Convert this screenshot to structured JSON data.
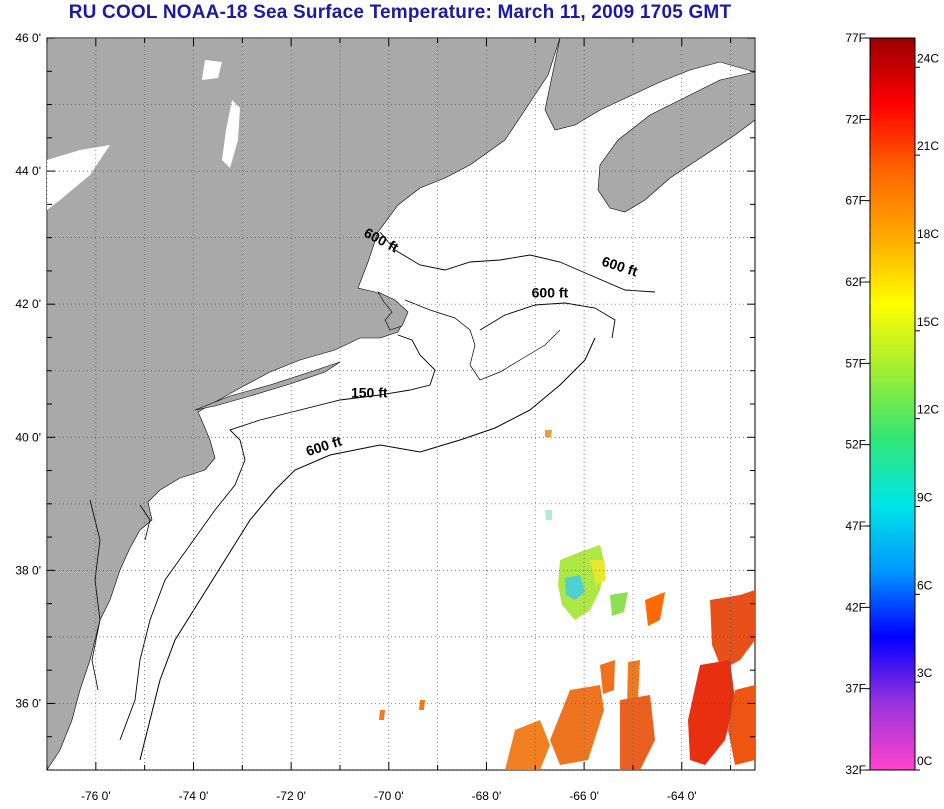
{
  "title": "RU COOL  NOAA-18  Sea Surface Temperature:  March 11, 2009 1705 GMT",
  "map": {
    "lon_range": [
      -77,
      -62.5
    ],
    "lat_range": [
      35,
      46
    ],
    "lon_ticks": [
      {
        "value": -76,
        "label": "-76 0'"
      },
      {
        "value": -74,
        "label": "-74 0'"
      },
      {
        "value": -72,
        "label": "-72 0'"
      },
      {
        "value": -70,
        "label": "-70 0'"
      },
      {
        "value": -68,
        "label": "-68 0'"
      },
      {
        "value": -66,
        "label": "-66 0'"
      },
      {
        "value": -64,
        "label": "-64 0'"
      }
    ],
    "lat_ticks": [
      {
        "value": 46,
        "label": "46 0'"
      },
      {
        "value": 44,
        "label": "44 0'"
      },
      {
        "value": 42,
        "label": "42 0'"
      },
      {
        "value": 40,
        "label": "40 0'"
      },
      {
        "value": 38,
        "label": "38 0'"
      },
      {
        "value": 36,
        "label": "36 0'"
      }
    ],
    "contour_labels": [
      {
        "text": "600 ft",
        "lon": -70.2,
        "lat": 42.9,
        "angle": 28
      },
      {
        "text": "600 ft",
        "lon": -65.3,
        "lat": 42.5,
        "angle": 18
      },
      {
        "text": "600 ft",
        "lon": -66.7,
        "lat": 42.1,
        "angle": 0
      },
      {
        "text": "150 ft",
        "lon": -70.4,
        "lat": 40.6,
        "angle": 0
      },
      {
        "text": "600 ft",
        "lon": -71.3,
        "lat": 39.8,
        "angle": -18
      }
    ],
    "land_color": "#a9a9a9",
    "ocean_color": "#ffffff"
  },
  "colorbar": {
    "f_labels": [
      {
        "value": 77,
        "label": "77F"
      },
      {
        "value": 72,
        "label": "72F"
      },
      {
        "value": 67,
        "label": "67F"
      },
      {
        "value": 62,
        "label": "62F"
      },
      {
        "value": 57,
        "label": "57F"
      },
      {
        "value": 52,
        "label": "52F"
      },
      {
        "value": 47,
        "label": "47F"
      },
      {
        "value": 42,
        "label": "42F"
      },
      {
        "value": 37,
        "label": "37F"
      },
      {
        "value": 32,
        "label": "32F"
      }
    ],
    "c_labels": [
      {
        "value": 24,
        "label": "24C"
      },
      {
        "value": 21,
        "label": "21C"
      },
      {
        "value": 18,
        "label": "18C"
      },
      {
        "value": 15,
        "label": "15C"
      },
      {
        "value": 12,
        "label": "12C"
      },
      {
        "value": 9,
        "label": "9C"
      },
      {
        "value": 6,
        "label": "6C"
      },
      {
        "value": 3,
        "label": "3C"
      },
      {
        "value": 0,
        "label": "0C"
      }
    ],
    "f_range": [
      32,
      77
    ],
    "colors": [
      "#ff44cc",
      "#9933dd",
      "#0000ff",
      "#0099ff",
      "#00e6e6",
      "#33e673",
      "#a0ee33",
      "#ffff00",
      "#ffaa00",
      "#ff6600",
      "#ff0000",
      "#990000"
    ]
  }
}
